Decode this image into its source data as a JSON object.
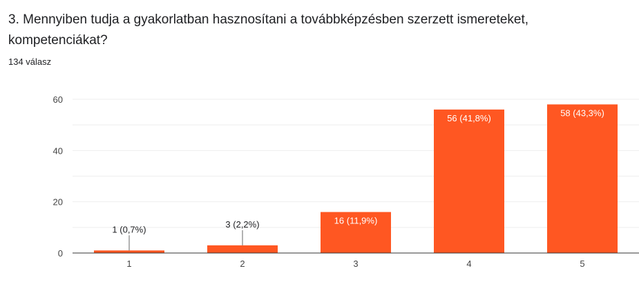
{
  "question": {
    "title": "3. Mennyiben tudja a gyakorlatban hasznosítani a továbbképzésben szerzett ismereteket, kompetenciákat?",
    "response_count": "134 válasz"
  },
  "colors": {
    "bar": "#FF5722",
    "grid": "#eeeeee",
    "axis": "#333333",
    "text": "#202124",
    "label_inside": "#ffffff"
  },
  "chart_data": {
    "type": "bar",
    "title": "",
    "xlabel": "",
    "ylabel": "",
    "categories": [
      "1",
      "2",
      "3",
      "4",
      "5"
    ],
    "values": [
      1,
      3,
      16,
      56,
      58
    ],
    "data_labels": [
      "1 (0,7%)",
      "3 (2,2%)",
      "16 (11,9%)",
      "56 (41,8%)",
      "58 (43,3%)"
    ],
    "ylim": [
      0,
      60
    ],
    "yticks": [
      0,
      20,
      40,
      60
    ],
    "grid": true,
    "legend": "none"
  }
}
